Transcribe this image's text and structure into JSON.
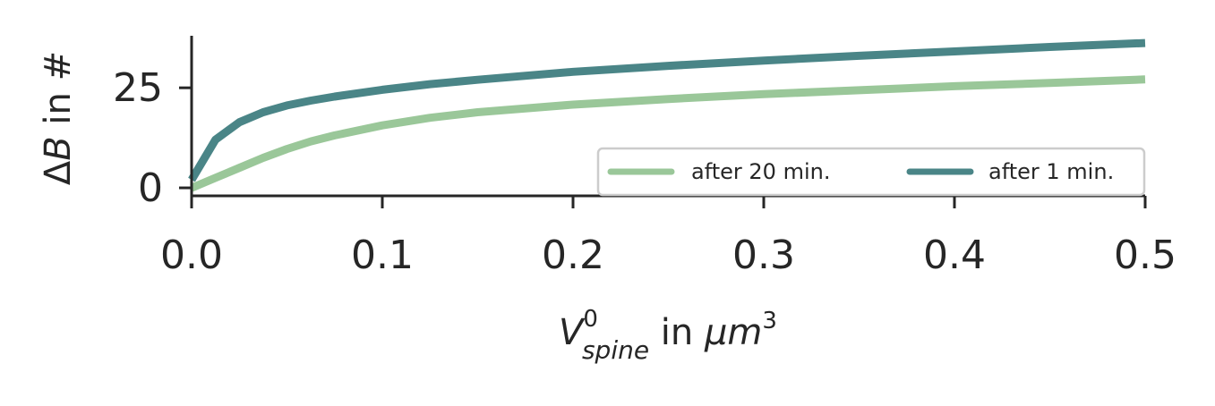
{
  "chart_data": {
    "type": "line",
    "xlabel": {
      "base": "V",
      "sup": "0",
      "sub": "spine",
      "mid": " in ",
      "unit": "μm",
      "unit_sup": "3"
    },
    "ylabel": {
      "delta": "Δ",
      "var": "B",
      "rest": " in #"
    },
    "xlim": [
      0.0,
      0.5
    ],
    "ylim": [
      -2,
      38
    ],
    "x_ticks": [
      0.0,
      0.1,
      0.2,
      0.3,
      0.4,
      0.5
    ],
    "x_tick_labels": [
      "0.0",
      "0.1",
      "0.2",
      "0.3",
      "0.4",
      "0.5"
    ],
    "y_ticks": [
      0,
      25
    ],
    "y_tick_labels": [
      "0",
      "25"
    ],
    "grid": false,
    "legend_placement": "lower-right",
    "legend_columns": 2,
    "series": [
      {
        "name": "after 20 min.",
        "color": "#9ac799",
        "x": [
          0.0,
          0.0125,
          0.025,
          0.0375,
          0.05,
          0.0625,
          0.075,
          0.1,
          0.125,
          0.15,
          0.2,
          0.25,
          0.3,
          0.35,
          0.4,
          0.45,
          0.5
        ],
        "y": [
          0,
          2.5,
          5.0,
          7.5,
          9.7,
          11.6,
          13.1,
          15.6,
          17.5,
          18.9,
          20.8,
          22.2,
          23.4,
          24.4,
          25.4,
          26.2,
          27.1
        ]
      },
      {
        "name": "after 1 min.",
        "color": "#4a8587",
        "x": [
          0.0,
          0.0125,
          0.025,
          0.0375,
          0.05,
          0.0625,
          0.075,
          0.1,
          0.125,
          0.15,
          0.2,
          0.25,
          0.3,
          0.35,
          0.4,
          0.45,
          0.5
        ],
        "y": [
          2.0,
          12.0,
          16.4,
          18.9,
          20.6,
          21.8,
          22.8,
          24.5,
          25.9,
          27.0,
          29.0,
          30.5,
          31.8,
          33.0,
          34.1,
          35.2,
          36.2
        ]
      }
    ]
  }
}
